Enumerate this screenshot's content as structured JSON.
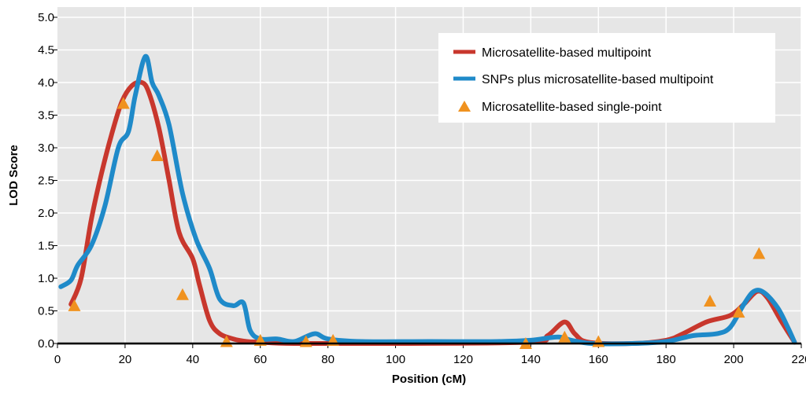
{
  "chart_data": {
    "type": "line",
    "title": "",
    "xlabel": "Position (cM)",
    "ylabel": "LOD Score",
    "xlim": [
      0,
      220
    ],
    "ylim": [
      0,
      5
    ],
    "x_ticks": [
      0,
      20,
      40,
      60,
      80,
      100,
      120,
      140,
      160,
      180,
      200,
      220
    ],
    "y_ticks": [
      "0.0",
      "0.5",
      "1.0",
      "1.5",
      "2.0",
      "2.5",
      "3.0",
      "3.5",
      "4.0",
      "4.5",
      "5.0"
    ],
    "grid": true,
    "legend_position": "top-right",
    "series": [
      {
        "name": "Microsatellite-based multipoint",
        "kind": "line",
        "color": "#c8372d",
        "points": [
          [
            4,
            0.6
          ],
          [
            7,
            1.0
          ],
          [
            10,
            1.9
          ],
          [
            13,
            2.6
          ],
          [
            16,
            3.2
          ],
          [
            19,
            3.7
          ],
          [
            22,
            3.95
          ],
          [
            25,
            4.0
          ],
          [
            27,
            3.85
          ],
          [
            30,
            3.3
          ],
          [
            33,
            2.5
          ],
          [
            36,
            1.7
          ],
          [
            40,
            1.3
          ],
          [
            42,
            0.9
          ],
          [
            45,
            0.35
          ],
          [
            48,
            0.15
          ],
          [
            52,
            0.07
          ],
          [
            56,
            0.03
          ],
          [
            60,
            0.02
          ],
          [
            70,
            0.0
          ],
          [
            100,
            0.0
          ],
          [
            140,
            0.02
          ],
          [
            145,
            0.12
          ],
          [
            150,
            0.33
          ],
          [
            153,
            0.15
          ],
          [
            157,
            0.02
          ],
          [
            170,
            0.0
          ],
          [
            180,
            0.05
          ],
          [
            185,
            0.15
          ],
          [
            192,
            0.33
          ],
          [
            199,
            0.43
          ],
          [
            203,
            0.6
          ],
          [
            207,
            0.8
          ],
          [
            210,
            0.7
          ],
          [
            214,
            0.35
          ],
          [
            218,
            0.02
          ]
        ]
      },
      {
        "name": "SNPs plus microsatellite-based multipoint",
        "kind": "line",
        "color": "#1f8ac9",
        "points": [
          [
            1,
            0.87
          ],
          [
            4,
            0.97
          ],
          [
            6,
            1.2
          ],
          [
            10,
            1.5
          ],
          [
            14,
            2.1
          ],
          [
            18,
            3.0
          ],
          [
            21,
            3.25
          ],
          [
            23,
            3.8
          ],
          [
            26,
            4.4
          ],
          [
            28,
            4.0
          ],
          [
            30,
            3.8
          ],
          [
            33,
            3.35
          ],
          [
            37,
            2.3
          ],
          [
            41,
            1.6
          ],
          [
            45,
            1.15
          ],
          [
            48,
            0.68
          ],
          [
            52,
            0.58
          ],
          [
            55,
            0.62
          ],
          [
            57,
            0.2
          ],
          [
            60,
            0.07
          ],
          [
            65,
            0.07
          ],
          [
            70,
            0.03
          ],
          [
            76,
            0.15
          ],
          [
            80,
            0.07
          ],
          [
            90,
            0.03
          ],
          [
            110,
            0.03
          ],
          [
            130,
            0.03
          ],
          [
            140,
            0.05
          ],
          [
            148,
            0.1
          ],
          [
            152,
            0.05
          ],
          [
            158,
            0.0
          ],
          [
            170,
            0.0
          ],
          [
            180,
            0.03
          ],
          [
            188,
            0.12
          ],
          [
            195,
            0.15
          ],
          [
            199,
            0.25
          ],
          [
            203,
            0.6
          ],
          [
            206,
            0.8
          ],
          [
            209,
            0.78
          ],
          [
            213,
            0.55
          ],
          [
            216,
            0.25
          ],
          [
            218,
            0.02
          ]
        ]
      },
      {
        "name": "Microsatellite-based single-point",
        "kind": "scatter",
        "marker": "triangle",
        "color": "#f0921f",
        "points": [
          [
            5,
            0.58
          ],
          [
            19.5,
            3.68
          ],
          [
            29.5,
            2.88
          ],
          [
            37,
            0.75
          ],
          [
            50,
            0.03
          ],
          [
            60,
            0.05
          ],
          [
            73.5,
            0.03
          ],
          [
            81.5,
            0.05
          ],
          [
            138.5,
            0.0
          ],
          [
            150,
            0.1
          ],
          [
            160,
            0.03
          ],
          [
            193,
            0.65
          ],
          [
            201.5,
            0.48
          ],
          [
            207.5,
            1.38
          ]
        ]
      }
    ]
  }
}
